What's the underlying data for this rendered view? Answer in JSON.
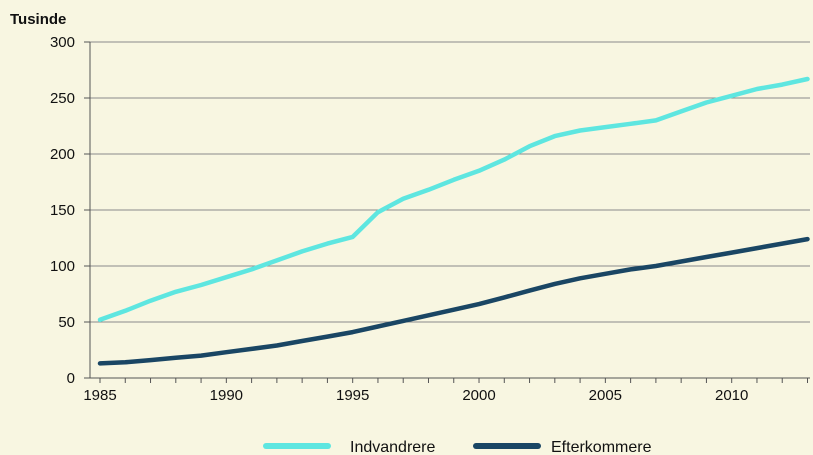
{
  "chart_data": {
    "type": "line",
    "y_unit_label": "Tusinde",
    "xlim": [
      1985,
      2013
    ],
    "ylim": [
      0,
      300
    ],
    "x_ticks": [
      1985,
      1990,
      1995,
      2000,
      2005,
      2010
    ],
    "y_ticks": [
      0,
      50,
      100,
      150,
      200,
      250,
      300
    ],
    "grid": "horizontal",
    "legend_position": "bottom",
    "x": [
      1985,
      1986,
      1987,
      1988,
      1989,
      1990,
      1991,
      1992,
      1993,
      1994,
      1995,
      1996,
      1997,
      1998,
      1999,
      2000,
      2001,
      2002,
      2003,
      2004,
      2005,
      2006,
      2007,
      2008,
      2009,
      2010,
      2011,
      2012,
      2013
    ],
    "series": [
      {
        "name": "Indvandrere",
        "color": "#5ee6e0",
        "values": [
          52,
          60,
          69,
          77,
          83,
          90,
          97,
          105,
          113,
          120,
          126,
          148,
          160,
          168,
          177,
          185,
          195,
          207,
          216,
          221,
          224,
          227,
          230,
          238,
          246,
          252,
          258,
          262,
          267
        ]
      },
      {
        "name": "Efterkommere",
        "color": "#1a4664",
        "values": [
          13,
          14,
          16,
          18,
          20,
          23,
          26,
          29,
          33,
          37,
          41,
          46,
          51,
          56,
          61,
          66,
          72,
          78,
          84,
          89,
          93,
          97,
          100,
          104,
          108,
          112,
          116,
          120,
          124
        ]
      }
    ]
  }
}
